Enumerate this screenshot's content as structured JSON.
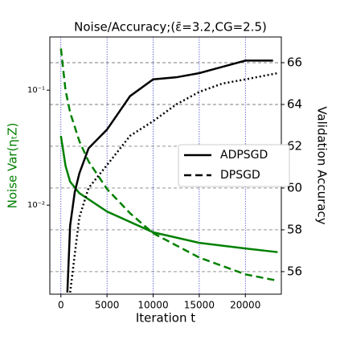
{
  "chart_data": {
    "type": "line",
    "title": "Noise/Accuracy;(ε̄=3.2,CG=2.5)",
    "x_label": "Iteration t",
    "y_label": "Noise Var(ηₜZ)",
    "y_label_color": "#008000",
    "y2_label": "Validation Accuracy",
    "xlim": [
      -1200,
      23900
    ],
    "xticks": [
      0,
      5000,
      10000,
      15000,
      20000
    ],
    "ylim": [
      0.00168,
      0.29
    ],
    "y_scale": "log",
    "yticks": [
      {
        "value": 0.01,
        "label": "10⁻²"
      },
      {
        "value": 0.1,
        "label": "10⁻¹"
      }
    ],
    "y2lim": [
      54.92,
      67.23
    ],
    "y2ticks": [
      56,
      58,
      60,
      62,
      64,
      66
    ],
    "grid": true,
    "legend": [
      {
        "name": "ADPSGD",
        "style": "solid"
      },
      {
        "name": "DPSGD",
        "style": "dashed"
      }
    ],
    "legend_color": "#000000",
    "series": [
      {
        "color": "#008000",
        "style": "solid",
        "axis": "y",
        "x": [
          0,
          500,
          1000,
          2000,
          5000,
          10000,
          15000,
          20000,
          23500
        ],
        "values": [
          0.04,
          0.022,
          0.016,
          0.0127,
          0.0088,
          0.0058,
          0.0047,
          0.0042,
          0.0039
        ]
      },
      {
        "color": "#008000",
        "style": "dashed",
        "axis": "y",
        "x": [
          0,
          500,
          1000,
          2000,
          3000,
          5000,
          7500,
          10000,
          15000,
          20000,
          23500
        ],
        "values": [
          0.23,
          0.1,
          0.064,
          0.036,
          0.024,
          0.0138,
          0.0085,
          0.0057,
          0.0035,
          0.0025,
          0.0022
        ]
      },
      {
        "color": "#000000",
        "style": "solid",
        "axis": "y2",
        "x": [
          700,
          1000,
          1500,
          2000,
          3000,
          5000,
          7500,
          10000,
          12500,
          15000,
          17500,
          20000,
          23000
        ],
        "values": [
          55,
          58.2,
          59.8,
          60.7,
          61.9,
          62.8,
          64.4,
          65.2,
          65.3,
          65.5,
          65.8,
          66.1,
          66.1
        ]
      },
      {
        "color": "#000000",
        "style": "dotted",
        "axis": "y2",
        "x": [
          1000,
          2000,
          3000,
          5000,
          7500,
          10000,
          12500,
          15000,
          17500,
          20000,
          23500
        ],
        "values": [
          55,
          58.6,
          60,
          61.1,
          62.5,
          63.2,
          64,
          64.6,
          65,
          65.2,
          65.5
        ]
      }
    ]
  }
}
